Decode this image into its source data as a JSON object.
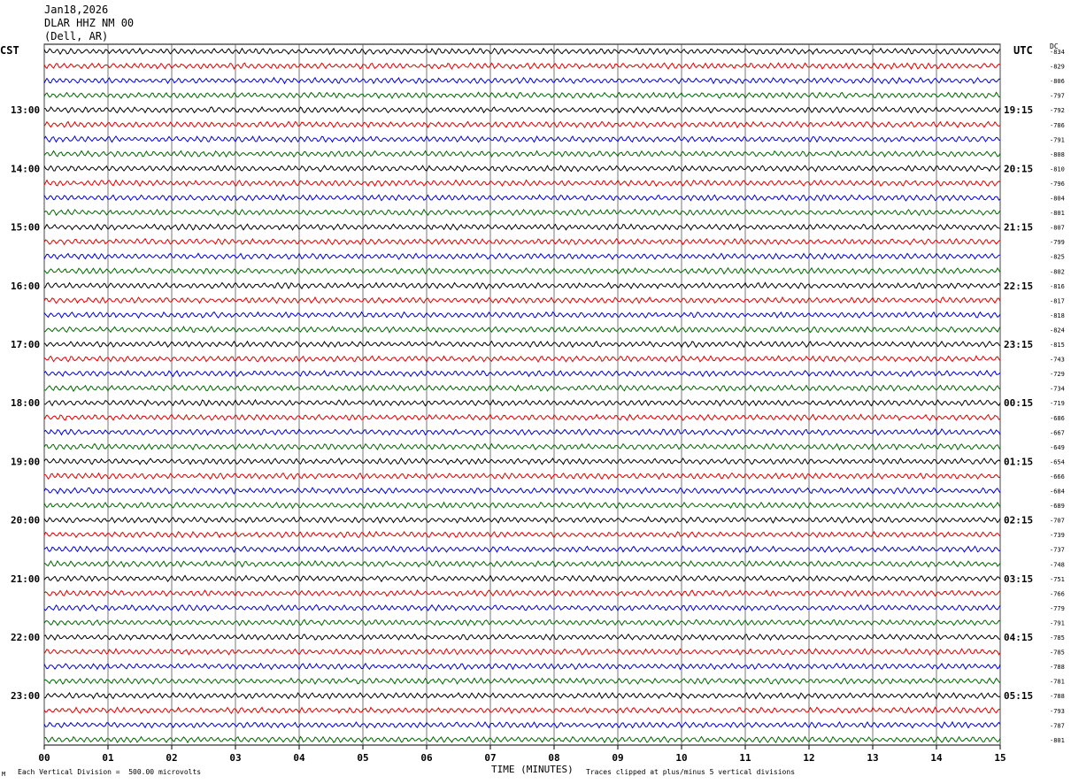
{
  "header": {
    "date": "Jan18,2026",
    "station": "DLAR HHZ NM 00",
    "location": "(Dell, AR)"
  },
  "left_axis_title": "CST",
  "right_axis_title": "UTC",
  "dc_title": "DC",
  "footer": {
    "division_note": "Each Vertical Division =  500.00 microvolts",
    "clip_note": "Traces clipped at plus/minus 5 vertical divisions",
    "mark": "M"
  },
  "colors": {
    "trace": [
      "#000000",
      "#dd0000",
      "#0000cc",
      "#006600"
    ],
    "grid": "#555555"
  },
  "chart_data": {
    "type": "line",
    "title": "",
    "xlabel": "TIME (MINUTES)",
    "xlim": [
      0,
      15
    ],
    "x_ticks": [
      "00",
      "01",
      "02",
      "03",
      "04",
      "05",
      "06",
      "07",
      "08",
      "09",
      "10",
      "11",
      "12",
      "13",
      "14",
      "15"
    ],
    "rows_per_hour": 4,
    "row_count": 48,
    "left_hour_labels": [
      "13:00",
      "14:00",
      "15:00",
      "16:00",
      "17:00",
      "18:00",
      "19:00",
      "20:00",
      "21:00",
      "22:00",
      "23:00"
    ],
    "right_hour_labels": [
      "19:15",
      "20:15",
      "21:15",
      "22:15",
      "23:15",
      "00:15",
      "01:15",
      "02:15",
      "03:15",
      "04:15",
      "05:15"
    ],
    "dc_offsets": [
      "-834",
      "-829",
      "-806",
      "-797",
      "-792",
      "-786",
      "-791",
      "-808",
      "-810",
      "-796",
      "-804",
      "-801",
      "-807",
      "-799",
      "-825",
      "-802",
      "-816",
      "-817",
      "-818",
      "-824",
      "-815",
      "-743",
      "-729",
      "-734",
      "-719",
      "-686",
      "-667",
      "-649",
      "-654",
      "-666",
      "-684",
      "-689",
      "-707",
      "-739",
      "-737",
      "-748",
      "-751",
      "-766",
      "-779",
      "-791",
      "-785",
      "-785",
      "-788",
      "-781",
      "-788",
      "-793",
      "-787",
      "-801"
    ]
  }
}
